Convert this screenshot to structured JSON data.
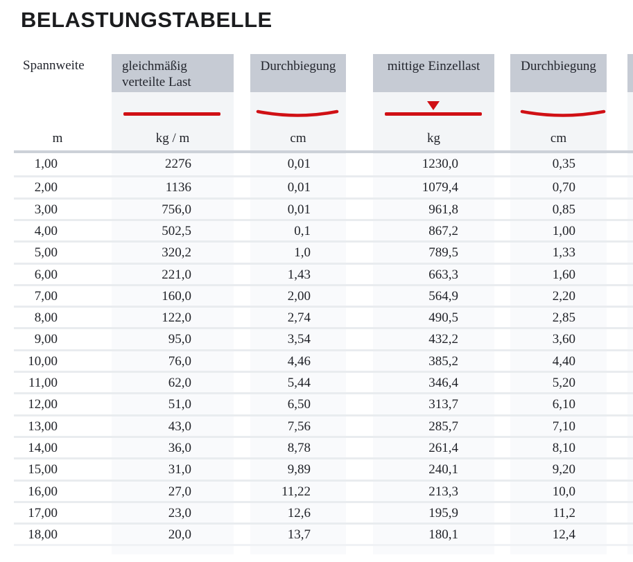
{
  "title": "BELASTUNGSTABELLE",
  "colors": {
    "accent_red": "#d01015",
    "header_box_gray": "#c6cbd4",
    "column_strip_light": "#f3f5f7",
    "separator_gray": "#e9ecef",
    "text_dark": "#1f2127"
  },
  "table": {
    "columns": [
      {
        "label": "Spannweite",
        "unit": "m",
        "icon": "none"
      },
      {
        "label": "gleichmäßig verteilte Last",
        "unit": "kg / m",
        "icon": "distributed-load-line"
      },
      {
        "label": "Durchbiegung",
        "unit": "cm",
        "icon": "deflection-curve"
      },
      {
        "label": "mittige Einzellast",
        "unit": "kg",
        "icon": "center-point-load"
      },
      {
        "label": "Durchbiegung",
        "unit": "cm",
        "icon": "deflection-curve"
      }
    ],
    "rows": [
      [
        "1,00",
        "2276",
        "0,01",
        "1230,0",
        "0,35"
      ],
      [
        "2,00",
        "1136",
        "0,01",
        "1079,4",
        "0,70"
      ],
      [
        "3,00",
        "756,0",
        "0,01",
        "961,8",
        "0,85"
      ],
      [
        "4,00",
        "502,5",
        "0,1",
        "867,2",
        "1,00"
      ],
      [
        "5,00",
        "320,2",
        "1,0",
        "789,5",
        "1,33"
      ],
      [
        "6,00",
        "221,0",
        "1,43",
        "663,3",
        "1,60"
      ],
      [
        "7,00",
        "160,0",
        "2,00",
        "564,9",
        "2,20"
      ],
      [
        "8,00",
        "122,0",
        "2,74",
        "490,5",
        "2,85"
      ],
      [
        "9,00",
        "95,0",
        "3,54",
        "432,2",
        "3,60"
      ],
      [
        "10,00",
        "76,0",
        "4,46",
        "385,2",
        "4,40"
      ],
      [
        "11,00",
        "62,0",
        "5,44",
        "346,4",
        "5,20"
      ],
      [
        "12,00",
        "51,0",
        "6,50",
        "313,7",
        "6,10"
      ],
      [
        "13,00",
        "43,0",
        "7,56",
        "285,7",
        "7,10"
      ],
      [
        "14,00",
        "36,0",
        "8,78",
        "261,4",
        "8,10"
      ],
      [
        "15,00",
        "31,0",
        "9,89",
        "240,1",
        "9,20"
      ],
      [
        "16,00",
        "27,0",
        "11,22",
        "213,3",
        "10,0"
      ],
      [
        "17,00",
        "23,0",
        "12,6",
        "195,9",
        "11,2"
      ],
      [
        "18,00",
        "20,0",
        "13,7",
        "180,1",
        "12,4"
      ]
    ]
  }
}
